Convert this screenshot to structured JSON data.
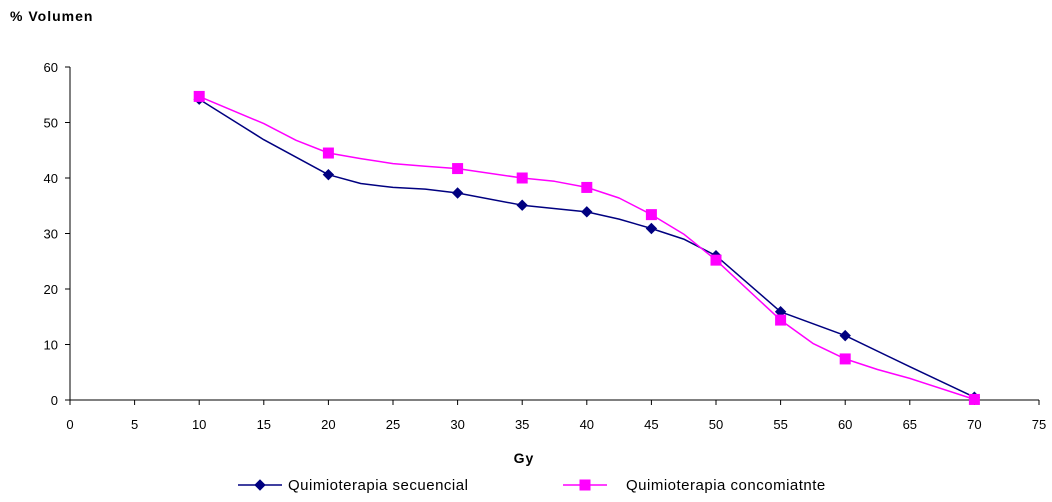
{
  "chart_data": {
    "type": "line",
    "title": "",
    "ylabel": "% Volumen",
    "xlabel": "Gy",
    "xlim": [
      0,
      75
    ],
    "ylim": [
      0,
      60
    ],
    "xticks": [
      0,
      5,
      10,
      15,
      20,
      25,
      30,
      35,
      40,
      45,
      50,
      55,
      60,
      65,
      70,
      75
    ],
    "yticks": [
      0,
      10,
      20,
      30,
      40,
      50,
      60
    ],
    "grid": false,
    "legend_position": "bottom",
    "series": [
      {
        "name": "Quimioterapia secuencial",
        "color": "#000080",
        "marker": "diamond",
        "markers_x": [
          10,
          20,
          30,
          35,
          40,
          45,
          50,
          55,
          60,
          70
        ],
        "markers_y": [
          54.2,
          40.6,
          37.3,
          35.1,
          33.9,
          30.9,
          26.0,
          15.9,
          11.6,
          0.5
        ],
        "x": [
          10,
          15,
          20,
          22.5,
          25,
          27.5,
          30,
          35,
          40,
          42.5,
          45,
          47.5,
          50,
          55,
          60,
          65,
          70
        ],
        "y": [
          54.2,
          46.9,
          40.6,
          39.0,
          38.3,
          38.0,
          37.3,
          35.1,
          33.9,
          32.6,
          30.9,
          29.0,
          26.0,
          15.9,
          11.6,
          6.0,
          0.5
        ]
      },
      {
        "name": "Quimioterapia concomiatnte",
        "color": "#FF00FF",
        "marker": "square",
        "markers_x": [
          10,
          20,
          30,
          35,
          40,
          45,
          50,
          55,
          60,
          70
        ],
        "markers_y": [
          54.7,
          44.5,
          41.7,
          40.0,
          38.3,
          33.4,
          25.2,
          14.4,
          7.4,
          0.1
        ],
        "x": [
          10,
          15,
          17.5,
          20,
          22.5,
          25,
          27.5,
          30,
          35,
          37.5,
          40,
          42.5,
          45,
          47.5,
          50,
          55,
          57.5,
          60,
          62.5,
          65,
          70
        ],
        "y": [
          54.7,
          49.8,
          46.8,
          44.5,
          43.5,
          42.6,
          42.1,
          41.7,
          40.0,
          39.4,
          38.3,
          36.4,
          33.4,
          29.9,
          25.2,
          14.4,
          10.2,
          7.4,
          5.5,
          3.9,
          0.1
        ]
      }
    ]
  }
}
